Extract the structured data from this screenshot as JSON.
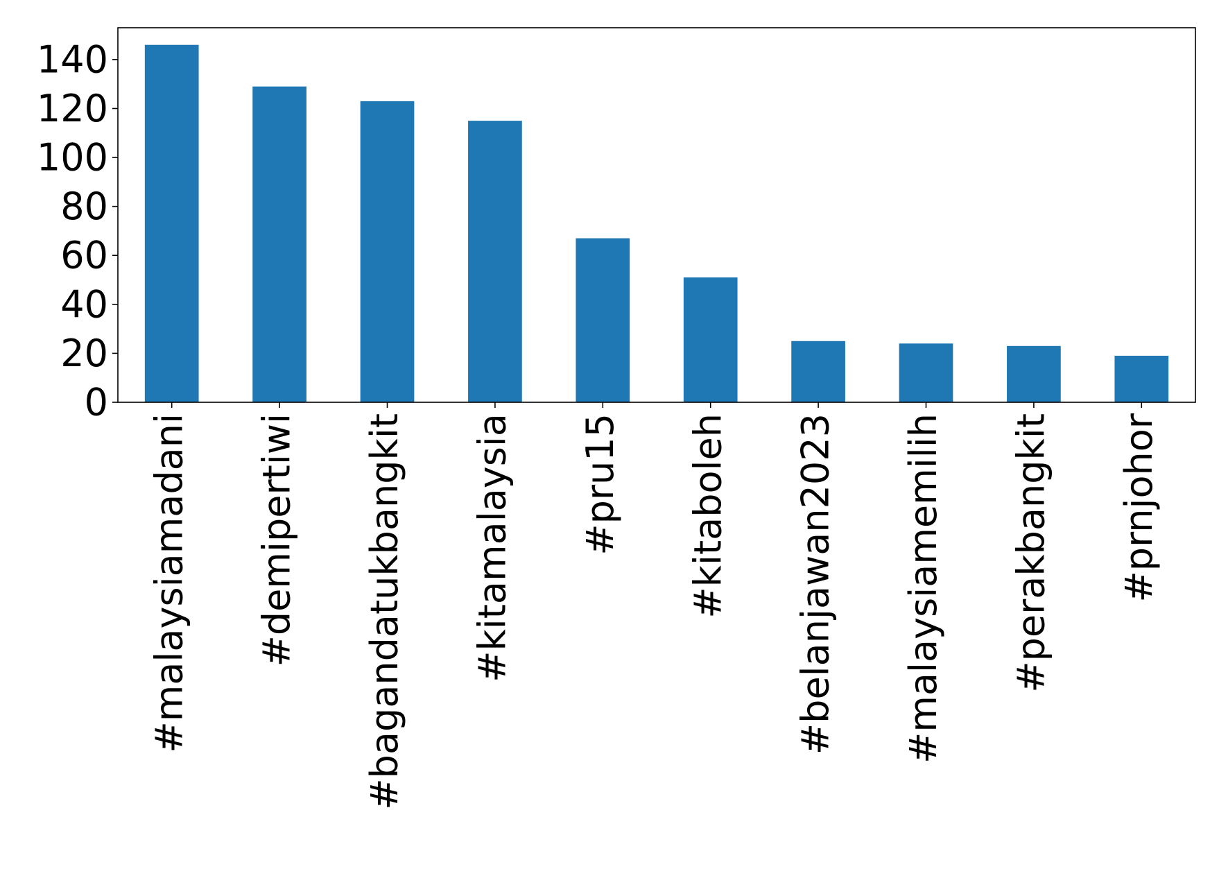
{
  "chart_data": {
    "type": "bar",
    "title": "",
    "xlabel": "",
    "ylabel": "",
    "categories": [
      "#malaysiamadani",
      "#demipertiwi",
      "#bagandatukbangkit",
      "#kitamalaysia",
      "#pru15",
      "#kitaboleh",
      "#belanjawan2023",
      "#malaysiamemilih",
      "#perakbangkit",
      "#prnjohor"
    ],
    "values": [
      146,
      129,
      123,
      115,
      67,
      51,
      25,
      24,
      23,
      19
    ],
    "ylim": [
      0,
      153
    ],
    "yticks": [
      0,
      20,
      40,
      60,
      80,
      100,
      120,
      140
    ],
    "bar_color": "#1f77b4",
    "grid": false,
    "legend": "none"
  }
}
